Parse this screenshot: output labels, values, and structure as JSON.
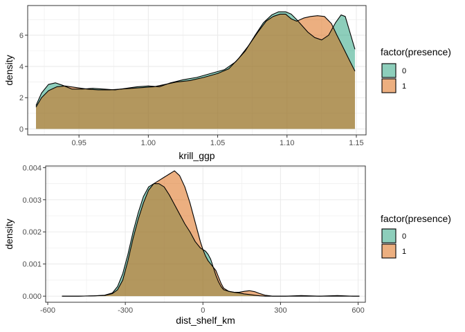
{
  "chart_data": [
    {
      "type": "area",
      "xlabel": "krill_ggp",
      "ylabel": "density",
      "xlim": [
        0.913,
        1.157
      ],
      "ylim": [
        -0.38,
        7.9
      ],
      "x_ticks": [
        0.95,
        1.0,
        1.05,
        1.1,
        1.15
      ],
      "x_tick_labels": [
        "0.95",
        "1.00",
        "1.05",
        "1.10",
        "1.15"
      ],
      "y_ticks": [
        0,
        2,
        4,
        6
      ],
      "y_tick_labels": [
        "0",
        "2",
        "4",
        "6"
      ],
      "grid": true,
      "legend": {
        "title": "factor(presence)",
        "position": "right",
        "entries": [
          "0",
          "1"
        ]
      },
      "series": [
        {
          "name": "0",
          "color": "#1b9e77",
          "x": [
            0.919,
            0.923,
            0.928,
            0.933,
            0.938,
            0.945,
            0.952,
            0.96,
            0.968,
            0.976,
            0.984,
            0.992,
            1.0,
            1.008,
            1.016,
            1.025,
            1.035,
            1.045,
            1.055,
            1.063,
            1.07,
            1.077,
            1.083,
            1.089,
            1.094,
            1.099,
            1.103,
            1.107,
            1.111,
            1.115,
            1.12,
            1.125,
            1.13,
            1.135,
            1.139,
            1.142,
            1.145,
            1.149
          ],
          "y": [
            1.5,
            2.3,
            2.85,
            2.95,
            2.8,
            2.55,
            2.55,
            2.6,
            2.55,
            2.5,
            2.6,
            2.7,
            2.75,
            2.7,
            2.95,
            3.15,
            3.3,
            3.55,
            3.8,
            4.3,
            5.0,
            6.0,
            6.8,
            7.3,
            7.5,
            7.5,
            7.35,
            7.0,
            6.6,
            6.2,
            5.85,
            5.7,
            6.0,
            6.8,
            7.3,
            7.2,
            6.3,
            5.1
          ]
        },
        {
          "name": "1",
          "color": "#d95f02",
          "x": [
            0.919,
            0.923,
            0.928,
            0.934,
            0.94,
            0.948,
            0.956,
            0.964,
            0.972,
            0.98,
            0.988,
            0.996,
            1.004,
            1.012,
            1.02,
            1.03,
            1.04,
            1.05,
            1.058,
            1.065,
            1.072,
            1.079,
            1.085,
            1.09,
            1.095,
            1.099,
            1.103,
            1.107,
            1.112,
            1.117,
            1.122,
            1.127,
            1.132,
            1.136,
            1.14,
            1.145,
            1.149
          ],
          "y": [
            1.4,
            2.0,
            2.45,
            2.7,
            2.75,
            2.65,
            2.55,
            2.5,
            2.5,
            2.55,
            2.6,
            2.65,
            2.7,
            2.85,
            3.0,
            3.1,
            3.3,
            3.55,
            3.85,
            4.5,
            5.3,
            6.2,
            6.9,
            7.2,
            7.35,
            7.35,
            7.05,
            6.9,
            7.1,
            7.2,
            7.25,
            7.2,
            6.75,
            6.0,
            5.3,
            4.4,
            3.7
          ]
        }
      ]
    },
    {
      "type": "area",
      "xlabel": "dist_shelf_km",
      "ylabel": "density",
      "xlim": [
        -608,
        628
      ],
      "ylim": [
        -0.00019,
        0.00405
      ],
      "x_ticks": [
        -600,
        -300,
        0,
        300,
        600
      ],
      "x_tick_labels": [
        "-600",
        "-300",
        "0",
        "300",
        "600"
      ],
      "y_ticks": [
        0.0,
        0.001,
        0.002,
        0.003,
        0.004
      ],
      "y_tick_labels": [
        "0.000",
        "0.001",
        "0.002",
        "0.003",
        "0.004"
      ],
      "grid": true,
      "legend": {
        "title": "factor(presence)",
        "position": "right",
        "entries": [
          "0",
          "1"
        ]
      },
      "series": [
        {
          "name": "0",
          "color": "#1b9e77",
          "x": [
            -545,
            -480,
            -420,
            -380,
            -350,
            -330,
            -310,
            -290,
            -270,
            -250,
            -230,
            -210,
            -190,
            -170,
            -150,
            -130,
            -110,
            -90,
            -70,
            -50,
            -30,
            -10,
            10,
            20,
            30,
            40,
            50,
            60,
            70,
            80,
            100,
            120,
            140,
            160,
            180,
            200,
            220,
            240,
            270,
            320,
            380,
            450,
            520,
            580,
            605
          ],
          "y": [
            0.0,
            0.0,
            1e-05,
            3e-05,
            0.0001,
            0.0003,
            0.0007,
            0.0013,
            0.002,
            0.0026,
            0.0031,
            0.0034,
            0.0035,
            0.0035,
            0.0034,
            0.00315,
            0.00285,
            0.00255,
            0.00225,
            0.002,
            0.0017,
            0.0015,
            0.0014,
            0.0013,
            0.00115,
            0.0009,
            0.00065,
            0.00045,
            0.0003,
            0.0002,
            0.00015,
            0.00012,
            0.0001,
            7e-05,
            5e-05,
            3e-05,
            1e-05,
            0.0,
            0.0,
            0.0,
            0.0,
            0.0,
            0.0,
            0.0,
            0.0
          ]
        },
        {
          "name": "1",
          "color": "#d95f02",
          "x": [
            -545,
            -480,
            -420,
            -380,
            -350,
            -330,
            -310,
            -290,
            -270,
            -250,
            -230,
            -210,
            -190,
            -170,
            -150,
            -130,
            -110,
            -90,
            -70,
            -50,
            -30,
            -10,
            0,
            10,
            20,
            30,
            40,
            50,
            60,
            70,
            80,
            100,
            120,
            140,
            160,
            180,
            200,
            220,
            240,
            270,
            320,
            380,
            450,
            520,
            580,
            605
          ],
          "y": [
            0.0,
            0.0,
            1e-05,
            2e-05,
            8e-05,
            0.0002,
            0.0005,
            0.0011,
            0.0018,
            0.0024,
            0.0029,
            0.0033,
            0.0035,
            0.0036,
            0.0037,
            0.0038,
            0.0039,
            0.00375,
            0.0034,
            0.0029,
            0.0023,
            0.0017,
            0.00145,
            0.00125,
            0.0011,
            0.001,
            0.0009,
            0.0008,
            0.0006,
            0.0004,
            0.00025,
            0.00015,
            0.00012,
            0.00012,
            0.00015,
            0.00017,
            0.00014,
            8e-05,
            3e-05,
            0.0,
            0.0,
            2e-05,
            0.0,
            2e-05,
            0.0,
            0.0
          ]
        }
      ]
    }
  ]
}
